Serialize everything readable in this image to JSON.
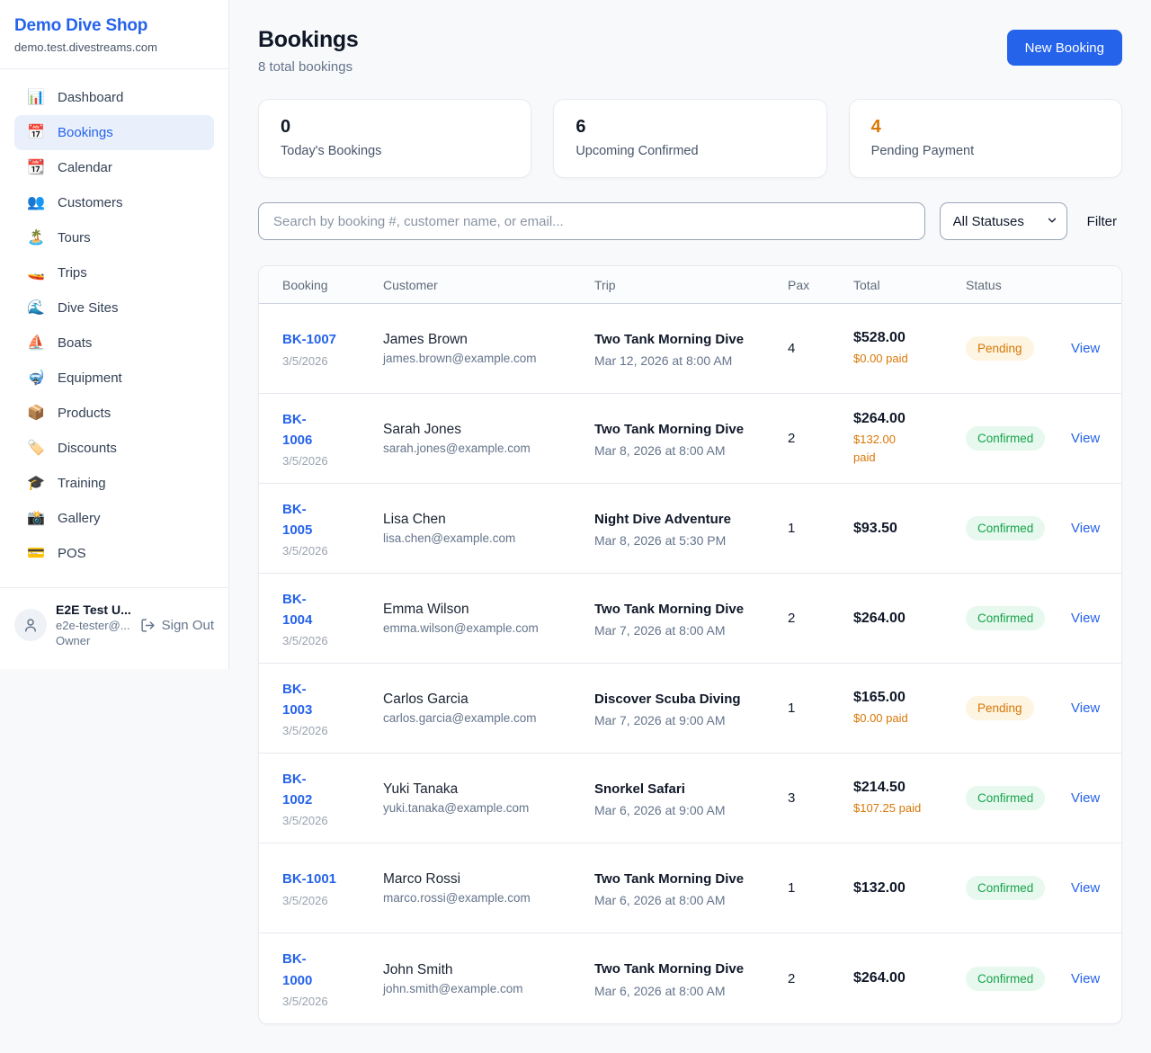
{
  "brand": {
    "name": "Demo Dive Shop",
    "domain": "demo.test.divestreams.com"
  },
  "sidebar": {
    "items": [
      {
        "icon_name": "bar-chart-icon",
        "icon": "📊",
        "label": "Dashboard",
        "active": false
      },
      {
        "icon_name": "calendar-icon",
        "icon": "📅",
        "label": "Bookings",
        "active": true
      },
      {
        "icon_name": "tear-off-calendar-icon",
        "icon": "📆",
        "label": "Calendar",
        "active": false
      },
      {
        "icon_name": "people-icon",
        "icon": "👥",
        "label": "Customers",
        "active": false
      },
      {
        "icon_name": "island-icon",
        "icon": "🏝️",
        "label": "Tours",
        "active": false
      },
      {
        "icon_name": "speedboat-icon",
        "icon": "🚤",
        "label": "Trips",
        "active": false
      },
      {
        "icon_name": "wave-icon",
        "icon": "🌊",
        "label": "Dive Sites",
        "active": false
      },
      {
        "icon_name": "sailboat-icon",
        "icon": "⛵",
        "label": "Boats",
        "active": false
      },
      {
        "icon_name": "diving-mask-icon",
        "icon": "🤿",
        "label": "Equipment",
        "active": false
      },
      {
        "icon_name": "package-icon",
        "icon": "📦",
        "label": "Products",
        "active": false
      },
      {
        "icon_name": "label-tag-icon",
        "icon": "🏷️",
        "label": "Discounts",
        "active": false
      },
      {
        "icon_name": "graduation-cap-icon",
        "icon": "🎓",
        "label": "Training",
        "active": false
      },
      {
        "icon_name": "camera-flash-icon",
        "icon": "📸",
        "label": "Gallery",
        "active": false
      },
      {
        "icon_name": "credit-card-icon",
        "icon": "💳",
        "label": "POS",
        "active": false
      }
    ]
  },
  "user": {
    "name": "E2E Test U...",
    "email": "e2e-tester@...",
    "role": "Owner",
    "sign_out_label": "Sign Out"
  },
  "header": {
    "title": "Bookings",
    "subtitle": "8 total bookings",
    "new_booking_label": "New Booking"
  },
  "stats": [
    {
      "value": "0",
      "label": "Today's Bookings",
      "accent": false
    },
    {
      "value": "6",
      "label": "Upcoming Confirmed",
      "accent": false
    },
    {
      "value": "4",
      "label": "Pending Payment",
      "accent": true
    }
  ],
  "filters": {
    "search_placeholder": "Search by booking #, customer name, or email...",
    "status_selected": "All Statuses",
    "filter_label": "Filter"
  },
  "table": {
    "columns": [
      "Booking",
      "Customer",
      "Trip",
      "Pax",
      "Total",
      "Status"
    ],
    "view_label": "View",
    "rows": [
      {
        "id": "BK-1007",
        "date": "3/5/2026",
        "customer": "James Brown",
        "email": "james.brown@example.com",
        "trip": "Two Tank Morning Dive",
        "when": "Mar 12, 2026 at 8:00 AM",
        "pax": "4",
        "total": "$528.00",
        "paid": "$0.00 paid",
        "status": "Pending"
      },
      {
        "id": "BK-\n1006",
        "date": "3/5/2026",
        "customer": "Sarah Jones",
        "email": "sarah.jones@example.com",
        "trip": "Two Tank Morning Dive",
        "when": "Mar 8, 2026 at 8:00 AM",
        "pax": "2",
        "total": "$264.00",
        "paid": "$132.00\npaid",
        "status": "Confirmed"
      },
      {
        "id": "BK-\n1005",
        "date": "3/5/2026",
        "customer": "Lisa Chen",
        "email": "lisa.chen@example.com",
        "trip": "Night Dive Adventure",
        "when": "Mar 8, 2026 at 5:30 PM",
        "pax": "1",
        "total": "$93.50",
        "paid": "",
        "status": "Confirmed"
      },
      {
        "id": "BK-\n1004",
        "date": "3/5/2026",
        "customer": "Emma Wilson",
        "email": "emma.wilson@example.com",
        "trip": "Two Tank Morning Dive",
        "when": "Mar 7, 2026 at 8:00 AM",
        "pax": "2",
        "total": "$264.00",
        "paid": "",
        "status": "Confirmed"
      },
      {
        "id": "BK-\n1003",
        "date": "3/5/2026",
        "customer": "Carlos Garcia",
        "email": "carlos.garcia@example.com",
        "trip": "Discover Scuba Diving",
        "when": "Mar 7, 2026 at 9:00 AM",
        "pax": "1",
        "total": "$165.00",
        "paid": "$0.00 paid",
        "status": "Pending"
      },
      {
        "id": "BK-\n1002",
        "date": "3/5/2026",
        "customer": "Yuki Tanaka",
        "email": "yuki.tanaka@example.com",
        "trip": "Snorkel Safari",
        "when": "Mar 6, 2026 at 9:00 AM",
        "pax": "3",
        "total": "$214.50",
        "paid": "$107.25 paid",
        "status": "Confirmed"
      },
      {
        "id": "BK-1001",
        "date": "3/5/2026",
        "customer": "Marco Rossi",
        "email": "marco.rossi@example.com",
        "trip": "Two Tank Morning Dive",
        "when": "Mar 6, 2026 at 8:00 AM",
        "pax": "1",
        "total": "$132.00",
        "paid": "",
        "status": "Confirmed"
      },
      {
        "id": "BK-\n1000",
        "date": "3/5/2026",
        "customer": "John Smith",
        "email": "john.smith@example.com",
        "trip": "Two Tank Morning Dive",
        "when": "Mar 6, 2026 at 8:00 AM",
        "pax": "2",
        "total": "$264.00",
        "paid": "",
        "status": "Confirmed"
      }
    ]
  },
  "colors": {
    "accent_blue": "#2563eb",
    "pending_orange": "#d97706",
    "confirmed_green": "#16a34a",
    "pending_badge_bg": "#fdf4e1",
    "confirmed_badge_bg": "#e7f8ee"
  }
}
